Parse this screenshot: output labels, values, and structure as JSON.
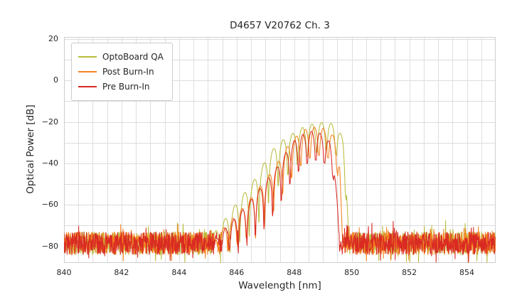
{
  "chart_data": {
    "type": "line",
    "title": "D4657 V20762 Ch. 3",
    "xlabel": "Wavelength [nm]",
    "ylabel": "Optical Power [dB]",
    "xlim": [
      840,
      855
    ],
    "ylim": [
      -88,
      21
    ],
    "xticks": {
      "values": [
        840,
        842,
        844,
        846,
        848,
        850,
        852,
        854
      ],
      "labels": [
        "840",
        "842",
        "844",
        "846",
        "848",
        "850",
        "852",
        "854"
      ]
    },
    "yticks": {
      "values": [
        20,
        0,
        -20,
        -40,
        -60,
        -80
      ],
      "labels": [
        "20",
        "0",
        "−20",
        "−40",
        "−60",
        "−80"
      ]
    },
    "grid": {
      "x_step": 0.5,
      "y_step": 10,
      "color": "#dcdcdc",
      "border_color": "#cfcfcf"
    },
    "legend": {
      "position": "upper left"
    },
    "sample_step": 0.01,
    "series": [
      {
        "name": "OptoBoard QA",
        "color": "#b8bd3c",
        "seed": 11,
        "noise": {
          "base": -78.5,
          "jitter": 5.5,
          "spike_prob": 0.07,
          "spike_amp": 6
        },
        "mode_spacing": 0.335,
        "mode_anchor": 848.95,
        "dip_clip": [
          [
            845.0,
            24
          ],
          [
            847.0,
            24
          ],
          [
            847.8,
            18
          ],
          [
            848.4,
            15
          ],
          [
            849.4,
            13
          ],
          [
            849.9,
            16
          ]
        ],
        "envelope": [
          [
            845.0,
            -78
          ],
          [
            845.35,
            -71
          ],
          [
            845.7,
            -65
          ],
          [
            846.05,
            -58
          ],
          [
            846.4,
            -52
          ],
          [
            846.75,
            -45
          ],
          [
            847.1,
            -36
          ],
          [
            847.45,
            -30
          ],
          [
            847.8,
            -27
          ],
          [
            848.1,
            -24
          ],
          [
            848.45,
            -21.5
          ],
          [
            848.8,
            -20.5
          ],
          [
            849.1,
            -20
          ],
          [
            849.35,
            -21
          ],
          [
            849.55,
            -24
          ],
          [
            849.7,
            -28
          ],
          [
            849.82,
            -45
          ],
          [
            849.9,
            -78
          ]
        ]
      },
      {
        "name": "Post Burn-In",
        "color": "#f58220",
        "seed": 7,
        "noise": {
          "base": -78.5,
          "jitter": 5.5,
          "spike_prob": 0.07,
          "spike_amp": 6
        },
        "mode_spacing": 0.315,
        "mode_anchor": 848.7,
        "dip_clip": [
          [
            845.0,
            24
          ],
          [
            847.0,
            22
          ],
          [
            848.0,
            17
          ],
          [
            848.6,
            14
          ],
          [
            849.4,
            12
          ],
          [
            849.7,
            14
          ]
        ],
        "envelope": [
          [
            845.2,
            -78
          ],
          [
            845.55,
            -71
          ],
          [
            845.9,
            -66
          ],
          [
            846.3,
            -60
          ],
          [
            846.7,
            -53
          ],
          [
            847.1,
            -46
          ],
          [
            847.45,
            -39
          ],
          [
            847.8,
            -31
          ],
          [
            848.1,
            -26.5
          ],
          [
            848.4,
            -23.5
          ],
          [
            848.7,
            -22.5
          ],
          [
            849.0,
            -23
          ],
          [
            849.25,
            -25.5
          ],
          [
            849.45,
            -27.5
          ],
          [
            849.58,
            -40
          ],
          [
            849.68,
            -78
          ]
        ]
      },
      {
        "name": "Pre Burn-In",
        "color": "#d92a23",
        "seed": 3,
        "noise": {
          "base": -78.5,
          "jitter": 5.5,
          "spike_prob": 0.07,
          "spike_amp": 6
        },
        "mode_spacing": 0.3,
        "mode_anchor": 848.6,
        "dip_clip": [
          [
            845.0,
            24
          ],
          [
            847.0,
            22
          ],
          [
            848.0,
            17
          ],
          [
            848.6,
            14
          ],
          [
            849.3,
            12
          ],
          [
            849.6,
            14
          ]
        ],
        "envelope": [
          [
            845.2,
            -78
          ],
          [
            845.55,
            -72
          ],
          [
            845.9,
            -67
          ],
          [
            846.3,
            -61
          ],
          [
            846.7,
            -54
          ],
          [
            847.05,
            -48
          ],
          [
            847.4,
            -42
          ],
          [
            847.7,
            -35
          ],
          [
            848.0,
            -29
          ],
          [
            848.3,
            -26
          ],
          [
            848.6,
            -24.5
          ],
          [
            848.85,
            -25
          ],
          [
            849.05,
            -27
          ],
          [
            849.25,
            -30
          ],
          [
            849.38,
            -36
          ],
          [
            849.5,
            -60
          ],
          [
            849.58,
            -80
          ]
        ]
      }
    ]
  }
}
